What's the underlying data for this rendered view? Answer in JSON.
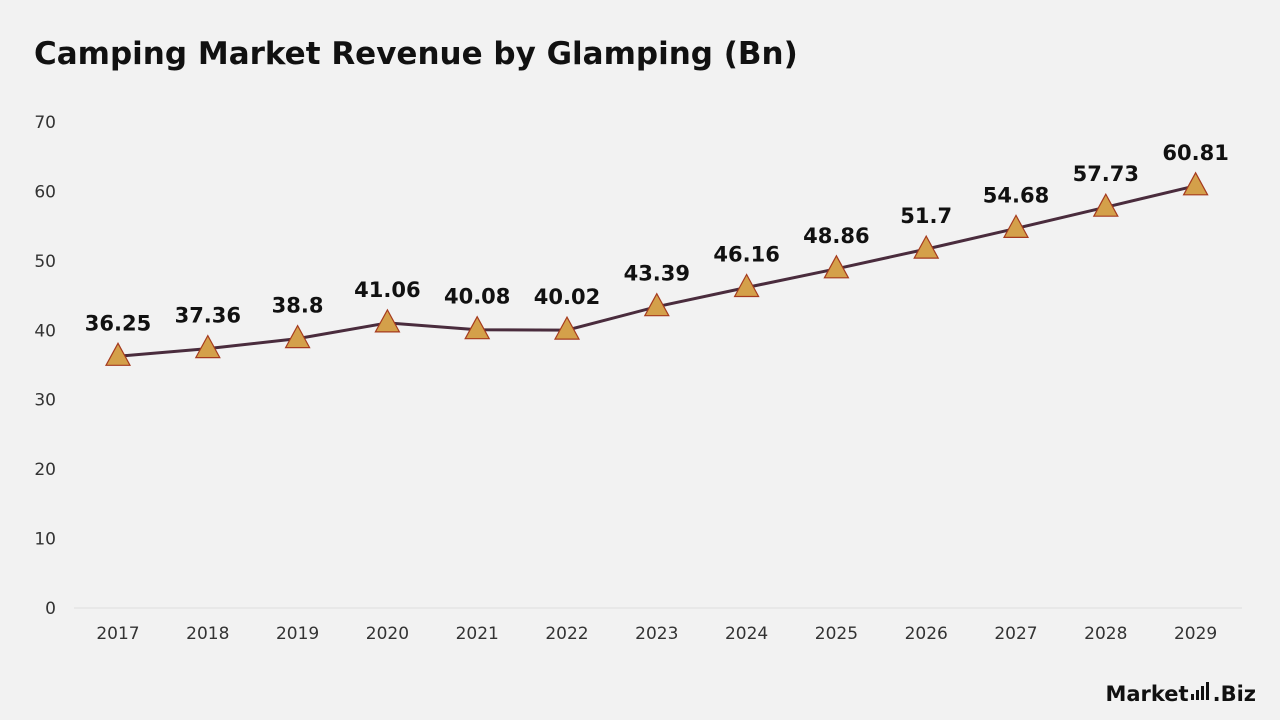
{
  "chart_data": {
    "type": "line",
    "title": "Camping Market Revenue by Glamping (Bn)",
    "categories": [
      "2017",
      "2018",
      "2019",
      "2020",
      "2021",
      "2022",
      "2023",
      "2024",
      "2025",
      "2026",
      "2027",
      "2028",
      "2029"
    ],
    "series": [
      {
        "values": [
          36.25,
          37.36,
          38.8,
          41.06,
          40.08,
          40.02,
          43.39,
          46.16,
          48.86,
          51.7,
          54.68,
          57.73,
          60.81
        ]
      }
    ],
    "y_ticks": [
      "0",
      "10",
      "20",
      "30",
      "40",
      "50",
      "60",
      "70"
    ],
    "ylim": [
      0,
      70
    ],
    "grid": false,
    "legend": "none",
    "marker": "triangle",
    "colors": {
      "line": "#4a2c3d",
      "marker_fill": "#d4a04a",
      "marker_stroke": "#a53a1e"
    }
  },
  "brand": {
    "name_prefix": "Market",
    "name_suffix": ".Biz"
  }
}
